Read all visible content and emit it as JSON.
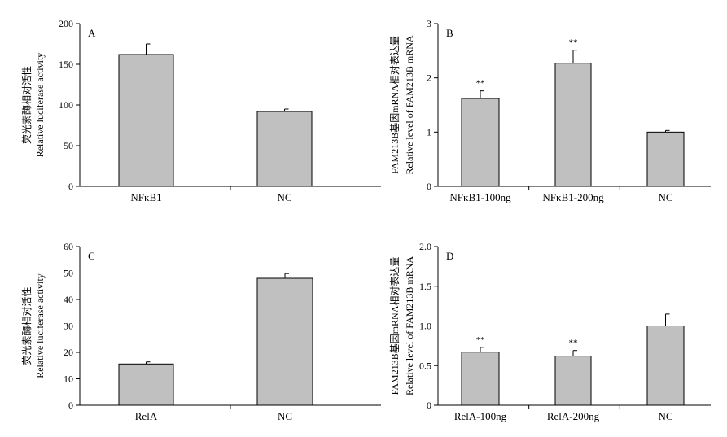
{
  "chart_data": [
    {
      "panel": "A",
      "type": "bar",
      "categories": [
        "NFκB1",
        "NC"
      ],
      "values": [
        162,
        92
      ],
      "errors": [
        13,
        3
      ],
      "significance": [
        "",
        ""
      ],
      "ylabel_cn": "荧光素酶相对活性",
      "ylabel_en": "Relative luciferase activity",
      "ylim": [
        0,
        200
      ],
      "yticks": [
        "0",
        "50",
        "100",
        "150",
        "200"
      ],
      "bar_color": "#c0c0c0",
      "grid": false
    },
    {
      "panel": "B",
      "type": "bar",
      "categories": [
        "NFκB1-100ng",
        "NFκB1-200ng",
        "NC"
      ],
      "values": [
        1.62,
        2.27,
        1.0
      ],
      "errors": [
        0.14,
        0.24,
        0.03
      ],
      "significance": [
        "**",
        "**",
        ""
      ],
      "ylabel_cn": "FAM213B基因mRNA相对表达量",
      "ylabel_en": "Relative level of FAM213B mRNA",
      "ylim": [
        0,
        3
      ],
      "yticks": [
        "0",
        "1",
        "2",
        "3"
      ],
      "bar_color": "#c0c0c0",
      "grid": false
    },
    {
      "panel": "C",
      "type": "bar",
      "categories": [
        "RelA",
        "NC"
      ],
      "values": [
        15.6,
        48
      ],
      "errors": [
        0.8,
        1.8
      ],
      "significance": [
        "",
        ""
      ],
      "ylabel_cn": "荧光素酶相对活性",
      "ylabel_en": "Relative luciferase activity",
      "ylim": [
        0,
        60
      ],
      "yticks": [
        "0",
        "10",
        "20",
        "30",
        "40",
        "50",
        "60"
      ],
      "bar_color": "#c0c0c0",
      "grid": false
    },
    {
      "panel": "D",
      "type": "bar",
      "categories": [
        "RelA-100ng",
        "RelA-200ng",
        "NC"
      ],
      "values": [
        0.67,
        0.62,
        1.0
      ],
      "errors": [
        0.06,
        0.07,
        0.15
      ],
      "significance": [
        "**",
        "**",
        ""
      ],
      "ylabel_cn": "FAM213B基因mRNA相对表达量",
      "ylabel_en": "Relative level of FAM213B mRNA",
      "ylim": [
        0,
        2.0
      ],
      "yticks": [
        "0",
        "0.5",
        "1.0",
        "1.5",
        "2.0"
      ],
      "bar_color": "#c0c0c0",
      "grid": false
    }
  ]
}
